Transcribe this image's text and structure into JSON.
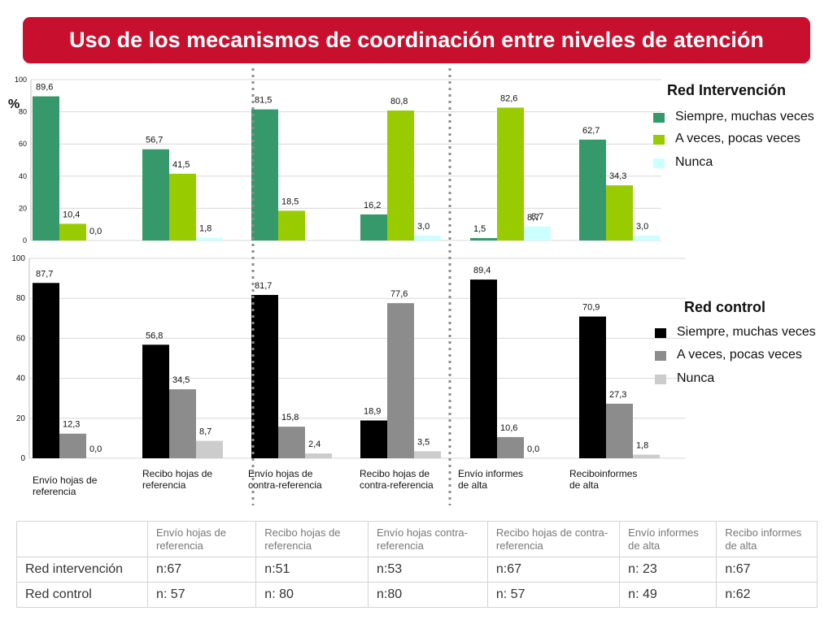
{
  "title": "Uso de los mecanismos de coordinación entre niveles de atención",
  "colors": {
    "banner": "#c8102e",
    "top_series": [
      "#35996b",
      "#99cc00",
      "#ccffff"
    ],
    "bottom_series": [
      "#000000",
      "#8c8c8c",
      "#cccccc"
    ]
  },
  "chart_data": [
    {
      "type": "bar",
      "title": "Red Intervención",
      "ylabel": "%",
      "ylim": [
        0,
        100
      ],
      "yticks": [
        "0",
        "20",
        "40",
        "60",
        "80",
        "100"
      ],
      "categories": [
        "Envío hojas de referencia",
        "Recibo hojas de referencia",
        "Envío hojas de contra-referencia",
        "Recibo hojas de contra-referencia",
        "Envío informes de alta",
        "Reciboinformes de alta"
      ],
      "series": [
        {
          "name": "Siempre, muchas veces",
          "values": [
            89.6,
            56.7,
            81.5,
            16.2,
            1.5,
            62.7
          ],
          "labels": [
            "89,6",
            "56,7",
            "81,5",
            "16,2",
            "1,5",
            "62,7"
          ]
        },
        {
          "name": "A veces, pocas veces",
          "values": [
            10.4,
            41.5,
            18.5,
            80.8,
            82.6,
            34.3
          ],
          "labels": [
            "10,4",
            "41,5",
            "18,5",
            "80,8",
            "82,6",
            "34,3"
          ]
        },
        {
          "name": "Nunca",
          "values": [
            0.0,
            1.8,
            0.0,
            3.0,
            8.7,
            3.0
          ],
          "labels": [
            "0,0",
            "1,8",
            "",
            "3,0",
            "8,7",
            "3,0"
          ]
        }
      ],
      "extra_label": "8,7"
    },
    {
      "type": "bar",
      "title": "Red control",
      "ylim": [
        0,
        100
      ],
      "yticks": [
        "0",
        "20",
        "40",
        "60",
        "80",
        "100"
      ],
      "categories": [
        "Envío hojas de referencia",
        "Recibo hojas de referencia",
        "Envío hojas de contra-referencia",
        "Recibo hojas de contra-referencia",
        "Envío informes de alta",
        "Reciboinformes de alta"
      ],
      "series": [
        {
          "name": "Siempre, muchas veces",
          "values": [
            87.7,
            56.8,
            81.7,
            18.9,
            89.4,
            70.9
          ],
          "labels": [
            "87,7",
            "56,8",
            "81,7",
            "18,9",
            "89,4",
            "70,9"
          ]
        },
        {
          "name": "A veces, pocas veces",
          "values": [
            12.3,
            34.5,
            15.8,
            77.6,
            10.6,
            27.3
          ],
          "labels": [
            "12,3",
            "34,5",
            "15,8",
            "77,6",
            "10,6",
            "27,3"
          ]
        },
        {
          "name": "Nunca",
          "values": [
            0.0,
            8.7,
            2.4,
            3.5,
            0.0,
            1.8
          ],
          "labels": [
            "0,0",
            "8,7",
            "2,4",
            "3,5",
            "0,0",
            "1,8"
          ]
        }
      ]
    }
  ],
  "category_labels": [
    [
      "Envío hojas de",
      "referencia"
    ],
    [
      "Recibo hojas de",
      "referencia"
    ],
    [
      "Envío hojas de",
      "contra-referencia"
    ],
    [
      "Recibo hojas de",
      "contra-referencia"
    ],
    [
      "Envío informes",
      "de alta"
    ],
    [
      "Reciboinformes",
      "de alta"
    ]
  ],
  "legends": {
    "top": {
      "title": "Red Intervención",
      "items": [
        "Siempre, muchas veces",
        "A veces, pocas veces",
        "Nunca"
      ]
    },
    "bottom": {
      "title": "Red control",
      "items": [
        "Siempre, muchas veces",
        "A veces, pocas veces",
        "Nunca"
      ]
    }
  },
  "table": {
    "headers": [
      "",
      "Envío hojas de referencia",
      "Recibo hojas de referencia",
      "Envío hojas contra-referencia",
      "Recibo hojas de contra-referencia",
      "Envío informes de alta",
      "Recibo informes de alta"
    ],
    "rows": [
      [
        "Red intervención",
        "n:67",
        "n:51",
        "n:53",
        "n:67",
        "n: 23",
        "n:67"
      ],
      [
        "Red control",
        "n: 57",
        "n: 80",
        "n:80",
        "n: 57",
        "n: 49",
        "n:62"
      ]
    ]
  }
}
